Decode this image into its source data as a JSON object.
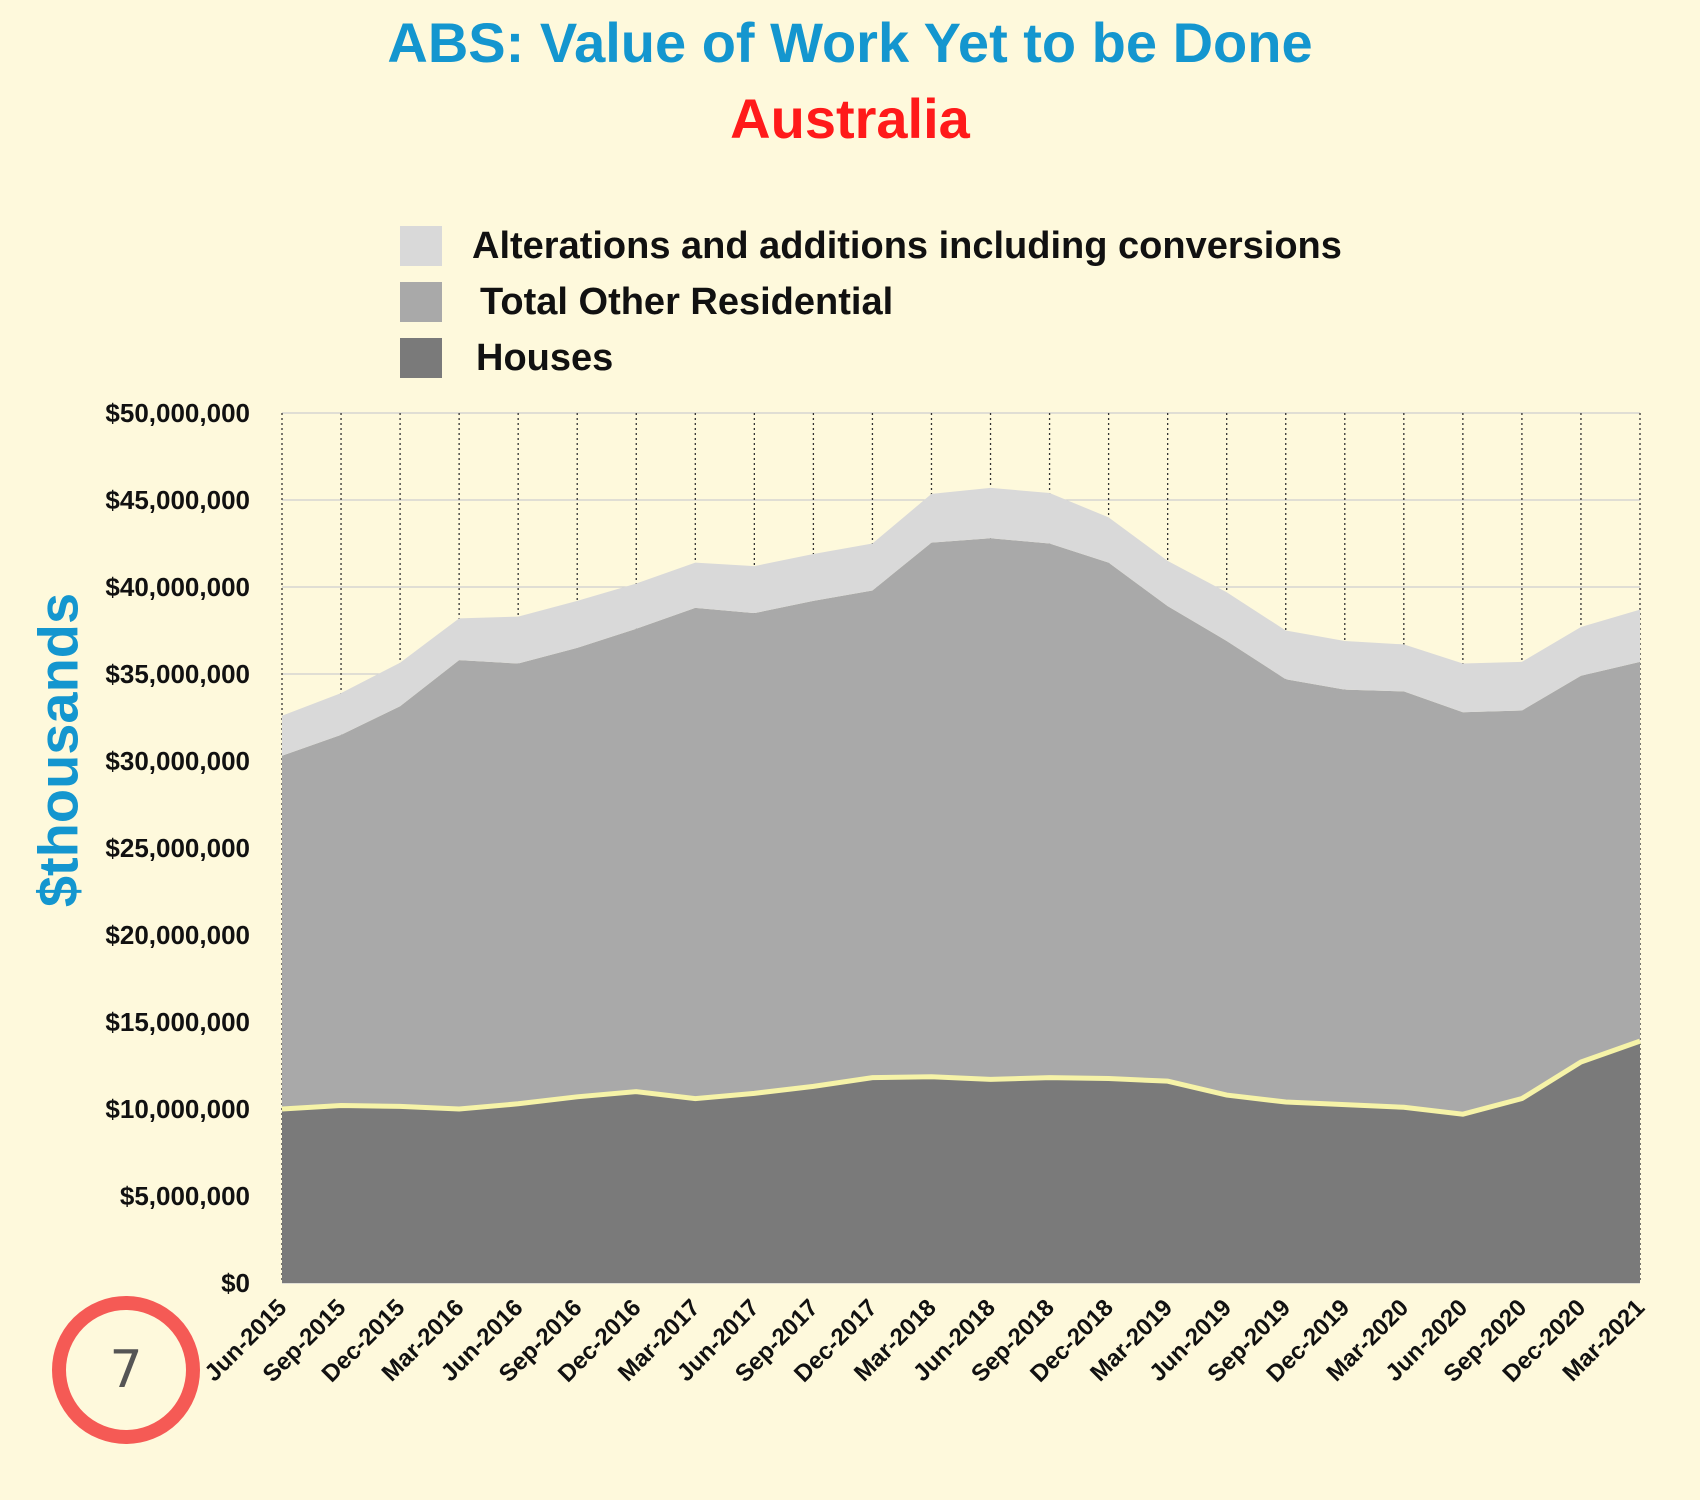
{
  "header": {
    "title": "ABS: Value of Work Yet to be Done",
    "subtitle": "Australia"
  },
  "badge": {
    "value": "7"
  },
  "chart_data": {
    "type": "area",
    "stacked": true,
    "title": "ABS: Value of Work Yet to be Done",
    "subtitle": "Australia",
    "ylabel": "$thousands",
    "xlabel": "",
    "ylim": [
      0,
      50000000
    ],
    "y_ticks": [
      0,
      5000000,
      10000000,
      15000000,
      20000000,
      25000000,
      30000000,
      35000000,
      40000000,
      45000000,
      50000000
    ],
    "y_tick_labels": [
      "$0",
      "$5,000,000",
      "$10,000,000",
      "$15,000,000",
      "$20,000,000",
      "$25,000,000",
      "$30,000,000",
      "$35,000,000",
      "$40,000,000",
      "$45,000,000",
      "$50,000,000"
    ],
    "legend_position": "top",
    "grid": true,
    "categories": [
      "Jun-2015",
      "Sep-2015",
      "Dec-2015",
      "Mar-2016",
      "Jun-2016",
      "Sep-2016",
      "Dec-2016",
      "Mar-2017",
      "Jun-2017",
      "Sep-2017",
      "Dec-2017",
      "Mar-2018",
      "Jun-2018",
      "Sep-2018",
      "Dec-2018",
      "Mar-2019",
      "Jun-2019",
      "Sep-2019",
      "Dec-2019",
      "Mar-2020",
      "Jun-2020",
      "Sep-2020",
      "Dec-2020",
      "Mar-2021"
    ],
    "series": [
      {
        "name": "Houses",
        "color": "#7a7a7a",
        "values": [
          10000000,
          10200000,
          10150000,
          10000000,
          10300000,
          10700000,
          11000000,
          10600000,
          10900000,
          11300000,
          11800000,
          11850000,
          11700000,
          11800000,
          11750000,
          11600000,
          10800000,
          10400000,
          10250000,
          10100000,
          9700000,
          10600000,
          12700000,
          13900000
        ]
      },
      {
        "name": "Total Other Residential",
        "color": "#a9a9a9",
        "values": [
          20300000,
          21300000,
          23000000,
          25800000,
          25300000,
          25800000,
          26600000,
          28200000,
          27600000,
          27900000,
          28000000,
          30700000,
          31100000,
          30700000,
          29650000,
          27300000,
          26100000,
          24300000,
          23850000,
          23900000,
          23100000,
          22300000,
          22200000,
          21800000
        ]
      },
      {
        "name": "Alterations and additions including conversions",
        "color": "#d9d9d9",
        "values": [
          2300000,
          2400000,
          2500000,
          2400000,
          2700000,
          2700000,
          2600000,
          2600000,
          2700000,
          2700000,
          2700000,
          2800000,
          2900000,
          2900000,
          2600000,
          2600000,
          2800000,
          2800000,
          2800000,
          2700000,
          2800000,
          2800000,
          2800000,
          3000000
        ]
      }
    ]
  }
}
